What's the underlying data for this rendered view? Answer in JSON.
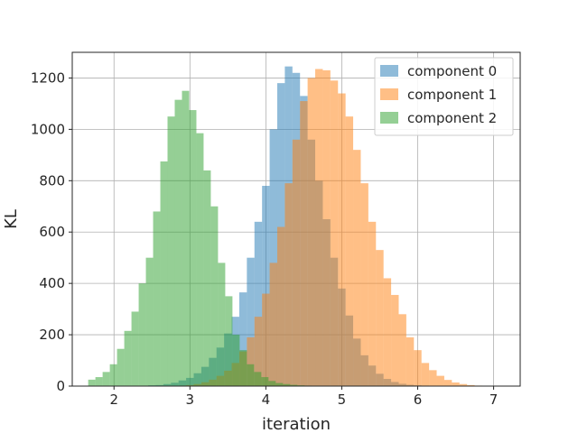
{
  "chart_data": {
    "type": "histogram",
    "xlabel": "iteration",
    "ylabel": "KL",
    "xlim": [
      1.45,
      7.35
    ],
    "ylim": [
      0,
      1300
    ],
    "x_ticks": [
      2,
      3,
      4,
      5,
      6,
      7
    ],
    "y_ticks": [
      0,
      200,
      400,
      600,
      800,
      1000,
      1200
    ],
    "grid": true,
    "legend_position": "top-right",
    "series": [
      {
        "name": "component 0",
        "color": "#1f77b4",
        "alpha": 0.5,
        "bin_start": 2.45,
        "bin_width": 0.1,
        "values": [
          3,
          4,
          8,
          13,
          22,
          32,
          50,
          75,
          110,
          150,
          205,
          270,
          365,
          500,
          640,
          780,
          1000,
          1180,
          1245,
          1220,
          1130,
          960,
          800,
          650,
          500,
          380,
          275,
          185,
          120,
          80,
          48,
          28,
          16,
          9,
          5,
          3,
          2
        ]
      },
      {
        "name": "component 1",
        "color": "#ff7f0e",
        "alpha": 0.5,
        "bin_start": 2.85,
        "bin_width": 0.1,
        "values": [
          2,
          4,
          8,
          15,
          25,
          40,
          60,
          90,
          135,
          190,
          270,
          360,
          480,
          620,
          790,
          960,
          1110,
          1200,
          1235,
          1230,
          1190,
          1140,
          1050,
          920,
          790,
          640,
          530,
          420,
          355,
          280,
          190,
          140,
          90,
          62,
          40,
          24,
          14,
          8,
          4,
          2,
          1,
          1,
          1
        ]
      },
      {
        "name": "component 2",
        "color": "#2ca02c",
        "alpha": 0.5,
        "bin_start": 1.66,
        "bin_width": 0.095,
        "values": [
          25,
          35,
          55,
          85,
          145,
          215,
          290,
          400,
          500,
          680,
          875,
          1050,
          1115,
          1150,
          1075,
          985,
          840,
          700,
          480,
          350,
          200,
          140,
          85,
          55,
          35,
          20,
          12,
          8,
          5,
          3,
          2
        ]
      }
    ]
  }
}
